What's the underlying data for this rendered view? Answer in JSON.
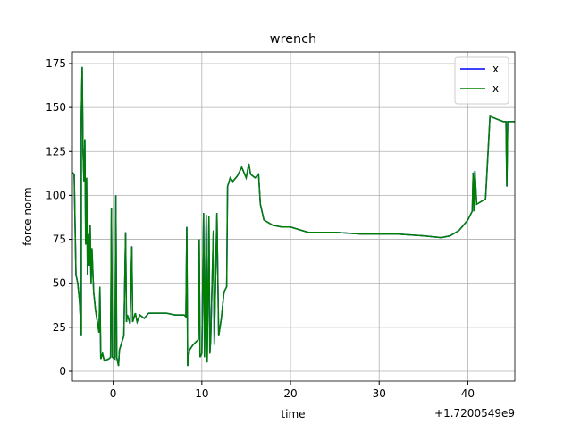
{
  "chart_data": {
    "type": "line",
    "title": "wrench",
    "x_label": "time",
    "y_label": "force norm",
    "offset_text": "+1.7200549e9",
    "xlim": [
      -4.6,
      45.3
    ],
    "ylim": [
      -5.6,
      181.6
    ],
    "xticks": [
      0,
      10,
      20,
      30,
      40
    ],
    "yticks": [
      0,
      25,
      50,
      75,
      100,
      125,
      150,
      175
    ],
    "grid": true,
    "legend": "upper right",
    "x": [
      -4.6,
      -4.4,
      -4.2,
      -4.0,
      -3.8,
      -3.6,
      -3.6,
      -3.5,
      -3.4,
      -3.3,
      -3.2,
      -3.1,
      -3.0,
      -2.9,
      -2.8,
      -2.7,
      -2.6,
      -2.5,
      -2.4,
      -2.2,
      -2.0,
      -1.6,
      -1.5,
      -1.4,
      -1.2,
      -1.0,
      -0.5,
      -0.3,
      -0.2,
      -0.1,
      0.2,
      0.3,
      0.4,
      0.6,
      0.7,
      1.0,
      1.2,
      1.4,
      1.5,
      1.6,
      1.9,
      2.1,
      2.2,
      2.5,
      2.7,
      3.0,
      3.5,
      4,
      5,
      6,
      7,
      8,
      8.2,
      8.3,
      8.4,
      8.6,
      9,
      9.6,
      9.7,
      9.8,
      10.0,
      10.2,
      10.3,
      10.5,
      10.6,
      10.8,
      10.9,
      11,
      11.3,
      11.4,
      11.7,
      11.9,
      12.2,
      12.5,
      12.8,
      12.9,
      13.2,
      13.5,
      14,
      14.5,
      15,
      15.3,
      15.5,
      16,
      16.4,
      16.6,
      17,
      18,
      19,
      20,
      22,
      25,
      28,
      32,
      35,
      37,
      38,
      39,
      40,
      40.5,
      40.6,
      40.7,
      40.8,
      41,
      42,
      42.5,
      43,
      44,
      44.3,
      44.4,
      44.5,
      45.3
    ],
    "series": [
      {
        "name": "x",
        "color": "#0000ff",
        "values": [
          113,
          112,
          55,
          50,
          40,
          20,
          145,
          173,
          125,
          108,
          132,
          72,
          110,
          55,
          78,
          60,
          83,
          50,
          70,
          45,
          35,
          22,
          48,
          7,
          10,
          6,
          7,
          8,
          93,
          8,
          7,
          100,
          8,
          3,
          12,
          17,
          20,
          79,
          28,
          32,
          27,
          71,
          28,
          33,
          28,
          32,
          30,
          33,
          33,
          33,
          32,
          32,
          31,
          82,
          3,
          12,
          15,
          18,
          75,
          8,
          10,
          90,
          8,
          89,
          5,
          88,
          10,
          18,
          80,
          15,
          90,
          20,
          30,
          45,
          48,
          105,
          110,
          108,
          111,
          116,
          110,
          118,
          112,
          110,
          112,
          95,
          86,
          83,
          82,
          82,
          79,
          79,
          78,
          78,
          77,
          76,
          77,
          80,
          86,
          91,
          113,
          91,
          114,
          95,
          98,
          145,
          144,
          142,
          142,
          105,
          142,
          142
        ]
      },
      {
        "name": "x",
        "color": "#008000",
        "values": [
          113,
          112,
          55,
          50,
          40,
          20,
          145,
          173,
          125,
          108,
          132,
          72,
          110,
          55,
          78,
          60,
          83,
          50,
          70,
          45,
          35,
          22,
          48,
          7,
          10,
          6,
          7,
          8,
          93,
          8,
          7,
          100,
          8,
          3,
          12,
          17,
          20,
          79,
          28,
          32,
          27,
          71,
          28,
          33,
          28,
          32,
          30,
          33,
          33,
          33,
          32,
          32,
          31,
          82,
          3,
          12,
          15,
          18,
          75,
          8,
          10,
          90,
          8,
          89,
          5,
          88,
          10,
          18,
          80,
          15,
          90,
          20,
          30,
          45,
          48,
          105,
          110,
          108,
          111,
          116,
          110,
          118,
          112,
          110,
          112,
          95,
          86,
          83,
          82,
          82,
          79,
          79,
          78,
          78,
          77,
          76,
          77,
          80,
          86,
          91,
          113,
          91,
          114,
          95,
          98,
          145,
          144,
          142,
          142,
          105,
          142,
          142
        ]
      }
    ]
  }
}
